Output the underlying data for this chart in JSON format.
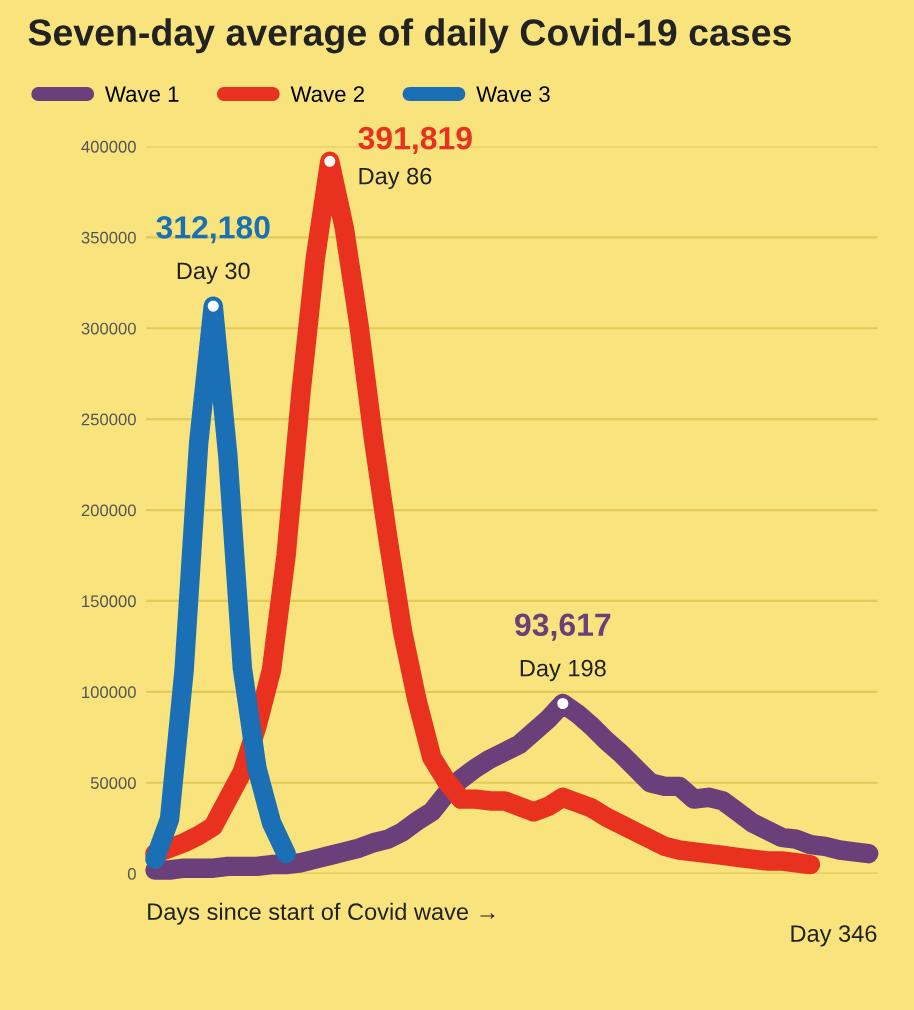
{
  "chart_data": {
    "type": "line",
    "title": "Seven-day average of daily Covid-19 cases",
    "categories": [
      null,
      null,
      null,
      null,
      null,
      null,
      null,
      null,
      null,
      null,
      null,
      null,
      null,
      null,
      null,
      null,
      null,
      null,
      null,
      null,
      null,
      null,
      null,
      null,
      null,
      null,
      null,
      null,
      null,
      null,
      null,
      null,
      null,
      null,
      null,
      null,
      null,
      null,
      null,
      null,
      null,
      null,
      null,
      null,
      null,
      null,
      null,
      null,
      null,
      null
    ],
    "series": [
      {
        "name": "Wave 1",
        "color": "#6b3f7a",
        "values": [
          2000,
          2000,
          3000,
          3000,
          3000,
          4000,
          4000,
          4000,
          5000,
          5000,
          6000,
          8000,
          10000,
          12000,
          14000,
          17000,
          19000,
          23000,
          29000,
          34000,
          44000,
          52000,
          58000,
          63000,
          67000,
          71000,
          78000,
          85000,
          93617,
          88000,
          81000,
          73000,
          66000,
          58000,
          50000,
          48000,
          48000,
          41000,
          42000,
          40000,
          34000,
          28000,
          24000,
          20000,
          19000,
          16000,
          15000,
          13000,
          12000,
          11000
        ]
      },
      {
        "name": "Wave 2",
        "color": "#e8321f",
        "values": [
          11000,
          14000,
          17000,
          21000,
          26000,
          41000,
          56000,
          81000,
          112000,
          175000,
          263000,
          338000,
          391819,
          355000,
          302000,
          239000,
          184000,
          133000,
          95000,
          64000,
          51000,
          41000,
          41000,
          40000,
          40000,
          37000,
          34000,
          37000,
          42000,
          39000,
          36000,
          31000,
          27000,
          23000,
          19000,
          15000,
          13000,
          12000,
          11000,
          10000,
          9000,
          8000,
          7000,
          7000,
          6000,
          5000,
          null,
          null,
          null,
          null
        ]
      },
      {
        "name": "Wave 3",
        "color": "#1a6fb5",
        "values": [
          8000,
          30000,
          112000,
          237000,
          312180,
          230000,
          113000,
          58000,
          28000,
          11000,
          null,
          null,
          null,
          null,
          null,
          null,
          null,
          null,
          null,
          null,
          null,
          null,
          null,
          null,
          null,
          null,
          null,
          null,
          null,
          null,
          null,
          null,
          null,
          null,
          null,
          null,
          null,
          null,
          null,
          null,
          null,
          null,
          null,
          null,
          null,
          null,
          null,
          null,
          null,
          null
        ]
      }
    ],
    "ylim": [
      0,
      400000
    ],
    "yticks": [
      0,
      50000,
      100000,
      150000,
      200000,
      250000,
      300000,
      350000,
      400000
    ],
    "tick_labels": "y",
    "grid": "y",
    "legend": "top left",
    "marker": "none",
    "line_style": "solid",
    "annotations": [
      {
        "text": "312,180",
        "y": 312180
      },
      {
        "text": "Day 30",
        "y": 312180
      },
      "391,819",
      "Day 86",
      {
        "text": "93,617",
        "y": 93617
      },
      {
        "text": "Day 198",
        "y": 93617
      },
      "Days since start of Covid wave →",
      "Day 346"
    ]
  }
}
